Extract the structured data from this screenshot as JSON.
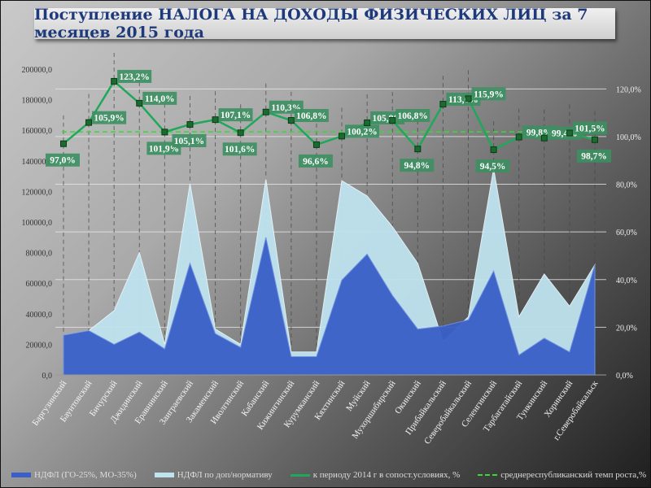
{
  "chart_data": {
    "type": "area+line",
    "title": "Поступление НАЛОГА НА ДОХОДЫ ФИЗИЧЕСКИХ ЛИЦ за 7 месяцев 2015 года",
    "categories": [
      "Баргузинский",
      "Баунтовский",
      "Бичурский",
      "Джидинский",
      "Еравнинский",
      "Заиграевский",
      "Закаменский",
      "Иволгинский",
      "Кабанский",
      "Кижингинский",
      "Курумканский",
      "Кяхтинский",
      "Муйский",
      "Мухоршибирский",
      "Окинский",
      "Прибайкальский",
      "Северобайкальский",
      "Селенгинский",
      "Тарбагатайский",
      "Тункинский",
      "Хоринский",
      "г.Северобайкальск"
    ],
    "series": [
      {
        "name": "НДФЛ (ГО-25%, МО-35%)",
        "type": "area",
        "axis": "left",
        "color": "#3a5fc8",
        "values": [
          26000,
          29000,
          20000,
          28000,
          17000,
          73000,
          27000,
          18000,
          90000,
          12000,
          12000,
          62000,
          79000,
          52000,
          30000,
          32000,
          36000,
          68000,
          13000,
          24000,
          15000,
          72000
        ]
      },
      {
        "name": "НДФЛ по доп/нормативу",
        "type": "area",
        "axis": "left",
        "color": "#bfe3ef",
        "values": [
          26000,
          29000,
          42000,
          80000,
          20000,
          125000,
          30000,
          20000,
          128000,
          15000,
          15000,
          127000,
          117000,
          97000,
          73000,
          22000,
          38000,
          135000,
          38000,
          66000,
          45000,
          72000
        ]
      },
      {
        "name": "к периоду 2014 г в сопост.условиях, %",
        "type": "line",
        "axis": "right",
        "color": "#1fa85a",
        "values": [
          97.0,
          105.9,
          123.2,
          114.0,
          101.9,
          105.1,
          107.1,
          101.6,
          110.3,
          106.8,
          96.6,
          100.2,
          105.8,
          106.8,
          94.8,
          113.6,
          115.9,
          94.5,
          99.8,
          99.4,
          101.5,
          98.7
        ],
        "labels": [
          "97,0%",
          "105,9%",
          "123,2%",
          "114,0%",
          "101,9%",
          "105,1%",
          "107,1%",
          "101,6%",
          "110,3%",
          "106,8%",
          "96,6%",
          "100,2%",
          "105,8%",
          "106,8%",
          "94,8%",
          "113,6%",
          "115,9%",
          "94,5%",
          "99,8%",
          "99,4%",
          "101,5%",
          "98,7%"
        ]
      },
      {
        "name": "среднереспубликанский темп роста,%",
        "type": "dashed-line",
        "axis": "right",
        "color": "#33dd33",
        "value": 102
      }
    ],
    "left_axis": {
      "ylim": [
        0,
        200000
      ],
      "ticks": [
        "0,0",
        "20000,0",
        "40000,0",
        "60000,0",
        "80000,0",
        "100000,0",
        "120000,0",
        "140000,0",
        "160000,0",
        "180000,0",
        "200000,0"
      ]
    },
    "right_axis": {
      "ylim": [
        0,
        128.3
      ],
      "tick_values": [
        0,
        20,
        40,
        60,
        80,
        100,
        120
      ],
      "ticks": [
        "0,0%",
        "20,0%",
        "40,0%",
        "60,0%",
        "80,0%",
        "100,0%",
        "120,0%"
      ]
    },
    "legend": "bottom"
  }
}
